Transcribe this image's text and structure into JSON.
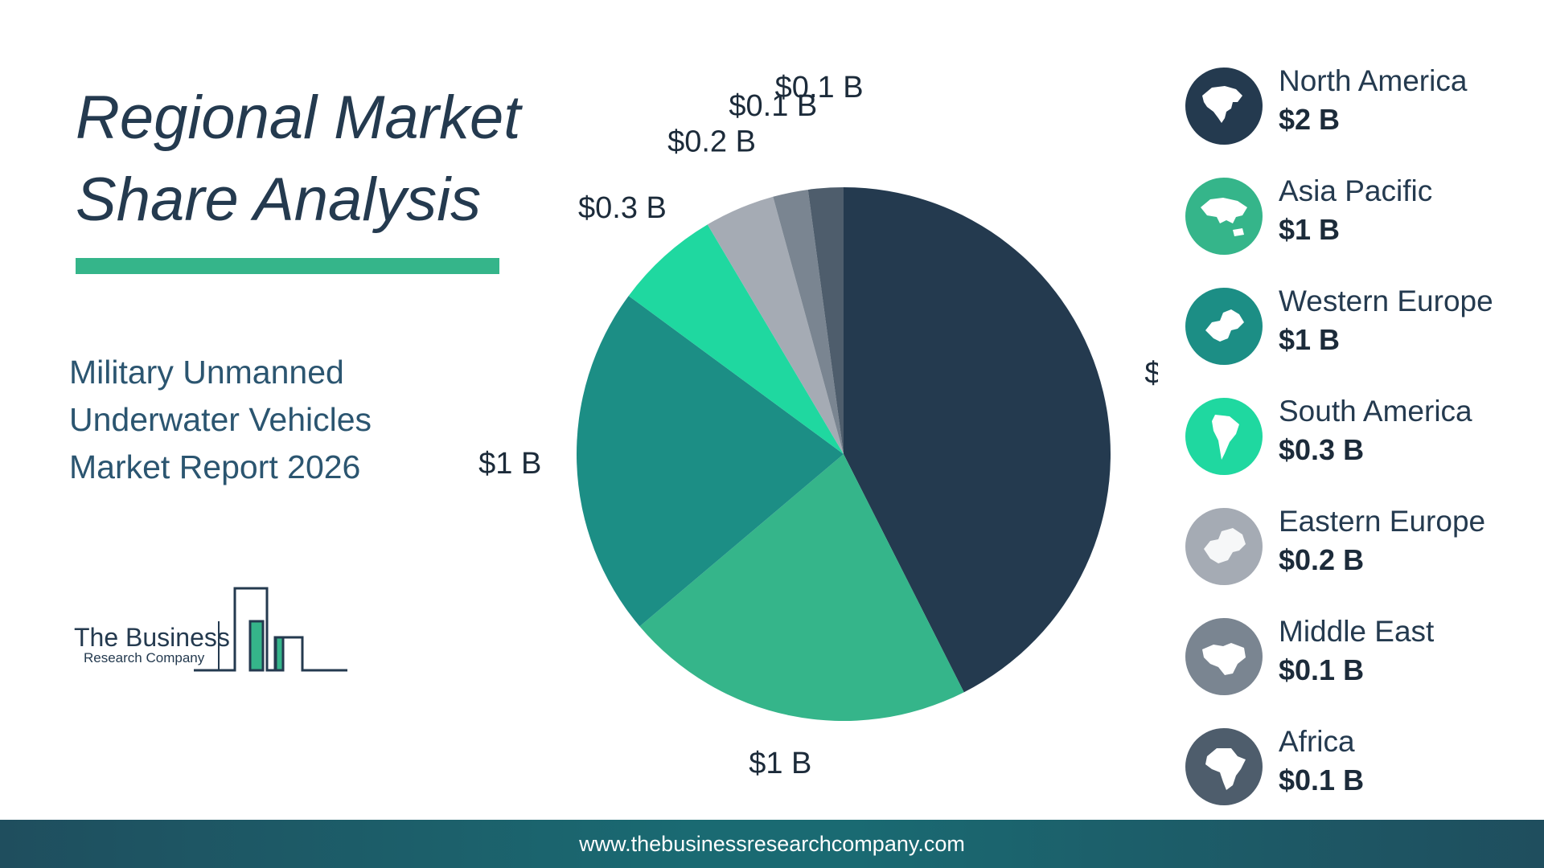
{
  "title_line1": "Regional Market",
  "title_line2": "Share Analysis",
  "subtitle": [
    "Military Unmanned",
    "Underwater Vehicles",
    "Market Report 2026"
  ],
  "logo": {
    "line1": "The Business",
    "line2": "Research Company"
  },
  "footer": {
    "url": "www.thebusinessresearchcompany.com"
  },
  "colors": {
    "navy": "#243a4f",
    "green": "#35b58a",
    "teal": "#1c8e85",
    "mint": "#1fd8a0",
    "lightgray": "#a5abb4",
    "slate": "#7a8591",
    "darkslate": "#4e5d6c"
  },
  "chart_data": {
    "type": "pie",
    "title": "Regional Market Share Analysis",
    "unit": "$ B",
    "slices": [
      {
        "name": "North America",
        "value": 2,
        "label": "$2 B",
        "color": "#243a4f",
        "icon": "north-america-map-icon"
      },
      {
        "name": "Asia Pacific",
        "value": 1,
        "label": "$1 B",
        "color": "#35b58a",
        "icon": "asia-pacific-map-icon"
      },
      {
        "name": "Western Europe",
        "value": 1,
        "label": "$1 B",
        "color": "#1c8e85",
        "icon": "western-europe-map-icon"
      },
      {
        "name": "South America",
        "value": 0.3,
        "label": "$0.3 B",
        "color": "#1fd8a0",
        "icon": "south-america-map-icon"
      },
      {
        "name": "Eastern Europe",
        "value": 0.2,
        "label": "$0.2 B",
        "color": "#a5abb4",
        "icon": "eastern-europe-map-icon"
      },
      {
        "name": "Middle East",
        "value": 0.1,
        "label": "$0.1 B",
        "color": "#7a8591",
        "icon": "middle-east-map-icon"
      },
      {
        "name": "Africa",
        "value": 0.1,
        "label": "$0.1 B",
        "color": "#4e5d6c",
        "icon": "africa-map-icon"
      }
    ],
    "legend_position": "right"
  }
}
